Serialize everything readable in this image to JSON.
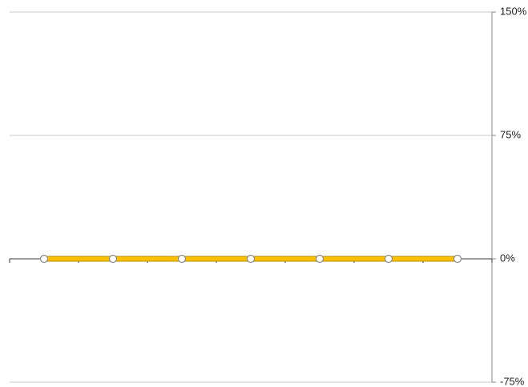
{
  "chart_data": {
    "type": "line",
    "categories": [
      null,
      null,
      null,
      null,
      null,
      null,
      null
    ],
    "values": [
      0,
      0,
      0,
      0,
      0,
      0,
      0
    ],
    "color": "#ffc000",
    "ylim": [
      -75,
      150
    ],
    "yticks": [
      {
        "value": -75,
        "label": "-75%"
      },
      {
        "value": 0,
        "label": "0%"
      },
      {
        "value": 75,
        "label": "75%"
      },
      {
        "value": 150,
        "label": "150%"
      }
    ],
    "grid": true
  }
}
